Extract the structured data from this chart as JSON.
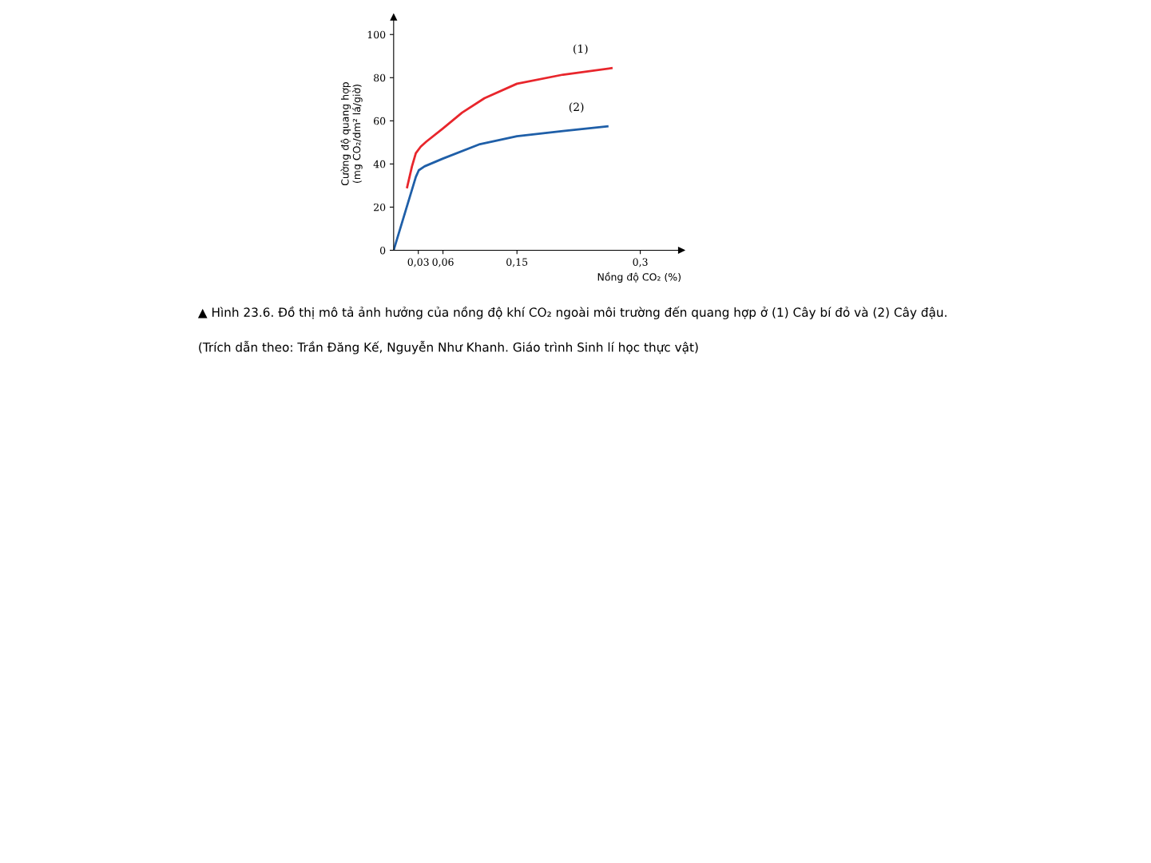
{
  "chart_data": {
    "type": "line",
    "title": "▲ Hình 23.6. Đồ thị mô tả ảnh hưởng của nồng độ khí CO₂ ngoài môi trường đến quang hợp ở (1) Cây bí đỏ và (2) Cây đậu.",
    "annotations": [
      "(Trích dẫn theo: Trần Đăng Kế, Nguyễn Như Khanh. Giáo trình Sinh lí học thực vật)"
    ],
    "xlabel": "Nồng độ CO₂ (%)",
    "ylabel": "Cường độ quang hợp\n(mg CO₂/dm² lá/giờ)",
    "series": [
      {
        "name": "(1)",
        "color": "#e8262c",
        "x": [
          0.0164,
          0.0223,
          0.027,
          0.0329,
          0.0399,
          0.06,
          0.0832,
          0.1105,
          0.15,
          0.206,
          0.265
        ],
        "values": [
          29.2,
          38.9,
          45.0,
          48.0,
          50.4,
          56.5,
          63.8,
          70.5,
          77.2,
          81.4,
          84.4
        ]
      },
      {
        "name": "(2)",
        "color": "#1f5fa8",
        "x": [
          0,
          0.027,
          0.0306,
          0.0376,
          0.06,
          0.105,
          0.15,
          0.206,
          0.26
        ],
        "values": [
          0,
          34.0,
          37.1,
          38.9,
          42.5,
          49.2,
          52.9,
          55.3,
          57.4
        ]
      }
    ],
    "xlim": [
      0,
      0.35
    ],
    "xticks": [
      {
        "value": 0.03,
        "label": "0,03"
      },
      {
        "value": 0.06,
        "label": "0,06"
      },
      {
        "value": 0.15,
        "label": "0,15"
      },
      {
        "value": 0.3,
        "label": "0,3"
      }
    ],
    "ylim": [
      0,
      108
    ],
    "yticks": [
      0,
      20,
      40,
      60,
      80,
      100
    ],
    "grid": false,
    "legend": false,
    "marker": "none",
    "line_style": "solid"
  }
}
